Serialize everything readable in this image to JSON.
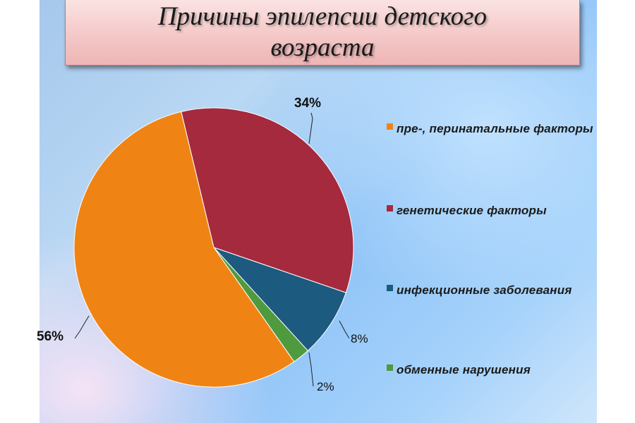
{
  "title": "Причины эпилепсии детского возраста",
  "chart_data": {
    "type": "pie",
    "categories": [
      "пре-, перинатальные факторы",
      "генетические факторы",
      "инфекционные заболевания",
      "обменные нарушения"
    ],
    "values": [
      56,
      34,
      8,
      2
    ],
    "value_labels": [
      "56%",
      "34%",
      "8%",
      "2%"
    ],
    "colors": [
      "#ef8415",
      "#a52a3e",
      "#1c5a80",
      "#4f9a3e"
    ],
    "legend_position": "right"
  }
}
